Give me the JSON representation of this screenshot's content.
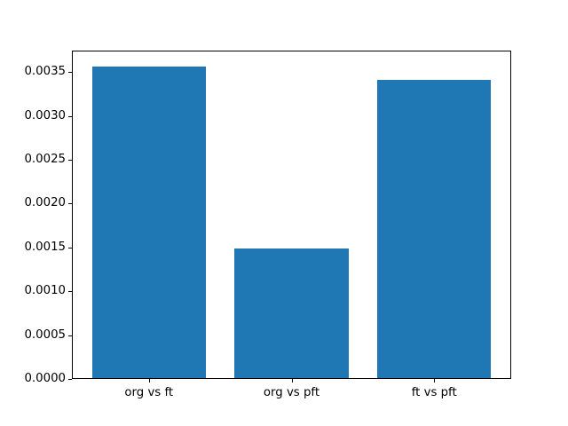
{
  "chart_data": {
    "type": "bar",
    "title": "",
    "xlabel": "",
    "ylabel": "",
    "categories": [
      "org vs ft",
      "org vs pft",
      "ft vs pft"
    ],
    "values": [
      0.00356,
      0.00149,
      0.00341
    ],
    "ylim": [
      0,
      0.003746
    ],
    "yticks": [
      0.0,
      0.0005,
      0.001,
      0.0015,
      0.002,
      0.0025,
      0.003,
      0.0035
    ],
    "ytick_labels": [
      "0.0000",
      "0.0005",
      "0.0010",
      "0.0015",
      "0.0020",
      "0.0025",
      "0.0030",
      "0.0035"
    ],
    "bar_color": "#1f77b4",
    "bar_width_frac": 0.8,
    "background_color": "#ffffff",
    "grid": false,
    "legend": null
  }
}
